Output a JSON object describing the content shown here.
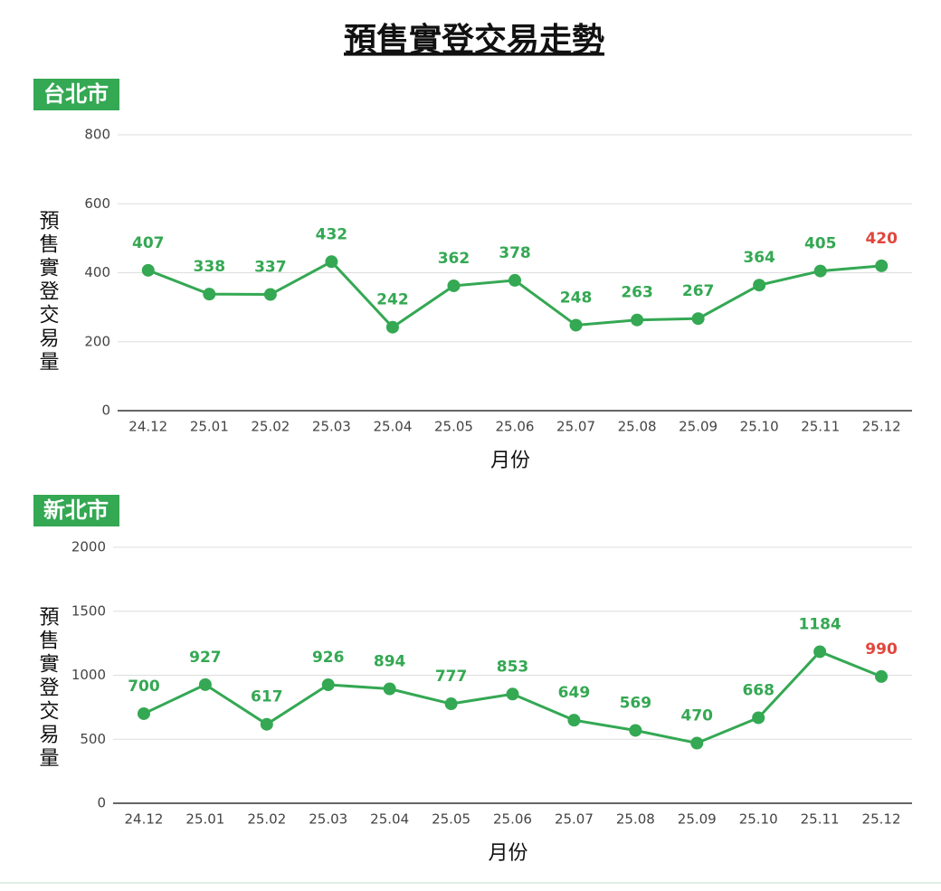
{
  "title": "預售實登交易走勢",
  "chart_data": [
    {
      "type": "line",
      "title": "台北市",
      "ylabel": "預售實登交易量",
      "xlabel": "月份",
      "categories": [
        "24.12",
        "25.01",
        "25.02",
        "25.03",
        "25.04",
        "25.05",
        "25.06",
        "25.07",
        "25.08",
        "25.09",
        "25.10",
        "25.11",
        "25.12"
      ],
      "series": [
        {
          "name": "台北市",
          "color": "#34a853",
          "values": [
            407,
            338,
            337,
            432,
            242,
            362,
            378,
            248,
            263,
            267,
            364,
            405,
            420
          ],
          "label_colors": [
            "#34a853",
            "#34a853",
            "#34a853",
            "#34a853",
            "#34a853",
            "#34a853",
            "#34a853",
            "#34a853",
            "#34a853",
            "#34a853",
            "#34a853",
            "#34a853",
            "#e0463c"
          ]
        }
      ],
      "ylim": [
        0,
        800
      ],
      "yticks": [
        0,
        200,
        400,
        600,
        800
      ],
      "grid": true
    },
    {
      "type": "line",
      "title": "新北市",
      "ylabel": "預售實登交易量",
      "xlabel": "月份",
      "categories": [
        "24.12",
        "25.01",
        "25.02",
        "25.03",
        "25.04",
        "25.05",
        "25.06",
        "25.07",
        "25.08",
        "25.09",
        "25.10",
        "25.11",
        "25.12"
      ],
      "series": [
        {
          "name": "新北市",
          "color": "#34a853",
          "values": [
            700,
            927,
            617,
            926,
            894,
            777,
            853,
            649,
            569,
            470,
            668,
            1184,
            990
          ],
          "label_colors": [
            "#34a853",
            "#34a853",
            "#34a853",
            "#34a853",
            "#34a853",
            "#34a853",
            "#34a853",
            "#34a853",
            "#34a853",
            "#34a853",
            "#34a853",
            "#34a853",
            "#e0463c"
          ]
        }
      ],
      "ylim": [
        0,
        2000
      ],
      "yticks": [
        0,
        500,
        1000,
        1500,
        2000
      ],
      "grid": true
    }
  ]
}
